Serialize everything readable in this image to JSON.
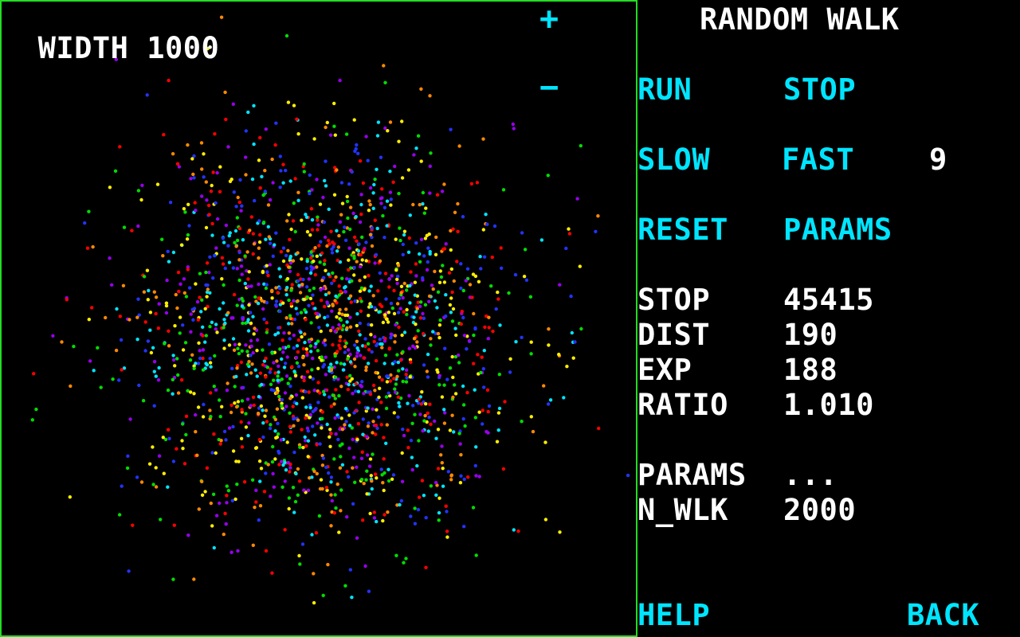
{
  "view": {
    "width_label": "WIDTH",
    "width_value": "1000",
    "zoom_in": "+",
    "zoom_out": "−",
    "border_color": "#22dd22"
  },
  "panel": {
    "title": "RANDOM WALK",
    "run": "RUN",
    "stop": "STOP",
    "slow": "SLOW",
    "fast": "FAST",
    "speed": "9",
    "reset": "RESET",
    "params_button": "PARAMS",
    "stats": [
      {
        "label": "STOP",
        "value": "45415"
      },
      {
        "label": "DIST",
        "value": "190"
      },
      {
        "label": "EXP",
        "value": "188"
      },
      {
        "label": "RATIO",
        "value": "1.010"
      }
    ],
    "params_label": "PARAMS",
    "params_value": "...",
    "nwlk_label": "N_WLK",
    "nwlk_value": "2000",
    "help": "HELP",
    "back": "BACK"
  },
  "simulation": {
    "n_walkers": 2000,
    "colors": [
      "#ff0000",
      "#ff8800",
      "#ffee00",
      "#00dd00",
      "#00e5ff",
      "#2233ff",
      "#9900ee"
    ]
  }
}
